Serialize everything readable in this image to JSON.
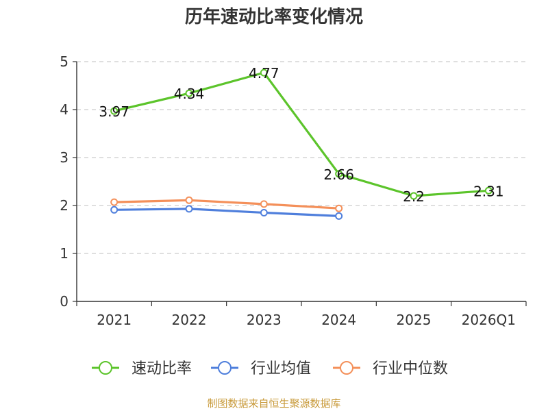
{
  "chart_data": {
    "type": "line",
    "title": "历年速动比率变化情况",
    "categories": [
      "2021",
      "2022",
      "2023",
      "2024",
      "2025",
      "2026Q1"
    ],
    "y_ticks": [
      "0",
      "1",
      "2",
      "3",
      "4",
      "5"
    ],
    "ylim": [
      0,
      5
    ],
    "grid": true,
    "legend_position": "bottom",
    "series": [
      {
        "name": "速动比率",
        "color": "#5cc42b",
        "values": [
          3.97,
          4.34,
          4.77,
          2.66,
          2.2,
          2.31
        ],
        "labels": [
          "3.97",
          "4.34",
          "4.77",
          "2.66",
          "2.2",
          "2.31"
        ]
      },
      {
        "name": "行业均值",
        "color": "#4f7fdc",
        "values": [
          1.91,
          1.93,
          1.85,
          1.78,
          null,
          null
        ]
      },
      {
        "name": "行业中位数",
        "color": "#f4905a",
        "values": [
          2.07,
          2.11,
          2.03,
          1.94,
          null,
          null
        ]
      }
    ]
  },
  "source": "制图数据来自恒生聚源数据库"
}
